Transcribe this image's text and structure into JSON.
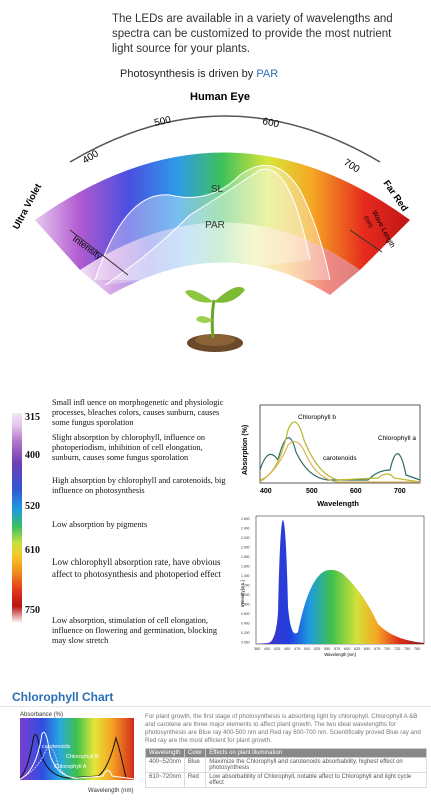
{
  "intro_text": "The LEDs are available in a variety of wavelengths and spectra can be customized to provide the most nutrient light source for your plants.",
  "photosynthesis_line": {
    "prefix": "Photosynthesis is driven by ",
    "par": "PAR"
  },
  "arc": {
    "human_eye": "Human Eye",
    "ticks": [
      "400",
      "500",
      "600",
      "700"
    ],
    "ultra_violet": "Ultra Violet",
    "far_red": "Far Red",
    "intensity": "Intensity",
    "wave_length": "Wave Length",
    "wave_length_unit": "(nm)",
    "sl": "SL",
    "par": "PAR"
  },
  "scale": {
    "ticks": [
      "315",
      "400",
      "520",
      "610",
      "750"
    ],
    "bands": [
      "Small infl uence on morphogenetic and physiologic processes, bleaches colors, causes sunburn, causes some fungus sporolation",
      "Slight absorption by chlorophyll, influence on photoperiodism, inhibition of cell elongation, sunburn, causes some fungus sporolation",
      "High absorption by chlorophyll and carotenoids, big influence on photosynthesis",
      "Low absorption by pigments",
      "Low chlorophyll absorption rate, have obvious affect to photosynthesis and photoperiod effect",
      "Low absorption, stimulation of cell elongation, influence on flowering and germination, blocking may slow stretch"
    ]
  },
  "absorption_chart": {
    "ylabel": "Absorption (%)",
    "xlabel": "Wavelength",
    "xticks": [
      "400",
      "500",
      "600",
      "700"
    ],
    "series_labels": [
      "Chlorophyll b",
      "Chlorophyll a",
      "carotenoids"
    ]
  },
  "spectrum_chart": {
    "ylabel": "Intensity[a.u.]",
    "xlabel": "Wavelength [nm]",
    "yticks": [
      "2.600",
      "2.400",
      "2.200",
      "2.000",
      "1.800",
      "1.600",
      "1.400",
      "1.200",
      "1.000",
      "0.800",
      "0.600",
      "0.400",
      "0.200",
      "0.050"
    ],
    "xticks": [
      "380",
      "400",
      "425",
      "450",
      "475",
      "500",
      "525",
      "550",
      "575",
      "600",
      "625",
      "650",
      "675",
      "700",
      "725",
      "750",
      "780"
    ]
  },
  "chlorophyll_chart": {
    "title": "Chlorophyll Chart",
    "ylabel": "Absorbance (%)",
    "xlabel": "Wavelength (nm)",
    "series_labels": [
      "carotenoids",
      "Chlorophyll B",
      "Chlorophyll A"
    ],
    "description": "For plant growth, the first stage of photosynthesis is absorbing light by chlorophyll. Chlorophyll A &B and carotene are three major elements to affect plant growth. The two ideal wavelengths for photosynthesis are Blue ray 400-500 nm and Red ray 600-700 nm. Scientifically proved Blue ray and Red ray are the most efficient for plant growth.",
    "table": {
      "headers": [
        "Wavelength",
        "Color",
        "Effects on plant illumination"
      ],
      "rows": [
        [
          "400~520nm",
          "Blue",
          "Maximize the Chlorophyll and carotenoids absorbability, highest effect on photosynthesis"
        ],
        [
          "610~720nm",
          "Red",
          "Low absorbability of Chlorophyll, notable affect to Chlorophyll and light cycle effect"
        ]
      ]
    }
  },
  "colors": {
    "accent_blue": "#2a6fb5"
  }
}
